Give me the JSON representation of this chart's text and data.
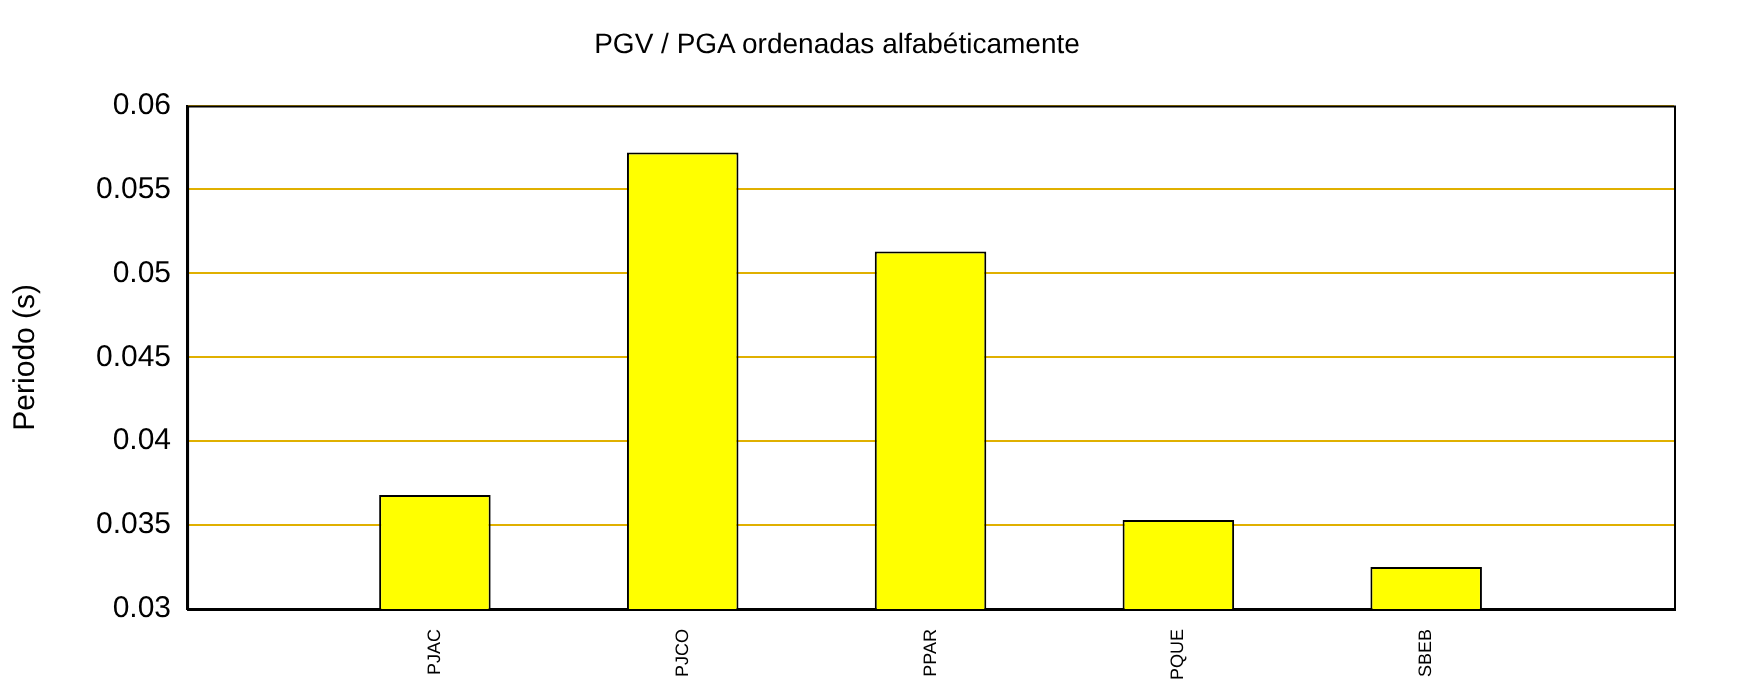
{
  "chart_data": {
    "type": "bar",
    "title": "PGV / PGA ordenadas alfabéticamente",
    "ylabel": "Periodo (s)",
    "categories": [
      null,
      "PJAC",
      "PJCO",
      "PPAR",
      "PQUE",
      "SBEB",
      null
    ],
    "series": [
      {
        "color": "#ffff00",
        "values": [
          null,
          0.0368,
          0.0572,
          0.0513,
          0.0353,
          0.0325,
          null
        ]
      }
    ],
    "ylim": [
      0.03,
      0.06
    ],
    "yticks": [
      0.03,
      0.035,
      0.04,
      0.045,
      0.05,
      0.055,
      0.06
    ],
    "grid": "y",
    "legend": false
  }
}
